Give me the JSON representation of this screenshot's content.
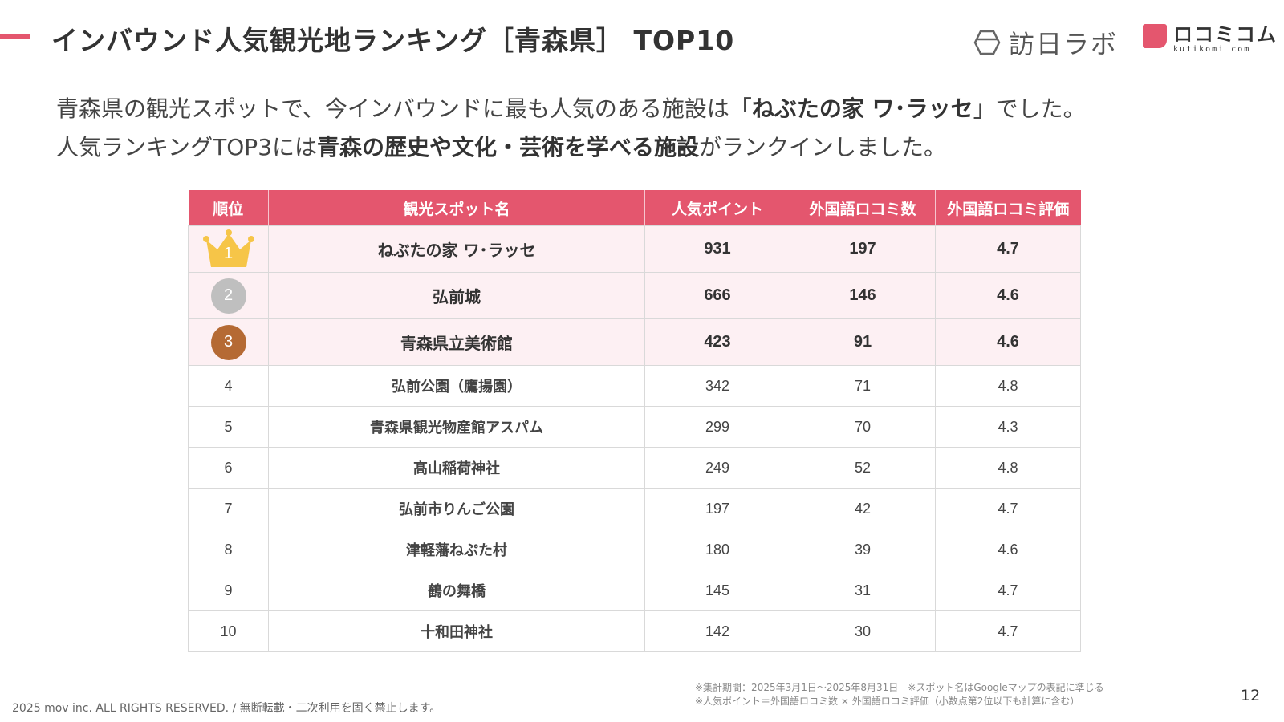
{
  "header": {
    "title": "インバウンド人気観光地ランキング［青森県］ TOP10",
    "logo_labo_name": "訪日ラボ",
    "logo_kuchikomi_jp": "ロコミコム",
    "logo_kuchikomi_en": "kutikomi com",
    "accent_color": "#e4566e"
  },
  "lead": {
    "line1_pre": "青森県の観光スポットで、今インバウンドに最も人気のある施設は「",
    "line1_bold": "ねぶたの家 ワ･ラッセ",
    "line1_post": "」でした。",
    "line2_pre": "人気ランキングTOP3には",
    "line2_bold": "青森の歴史や文化・芸術を学べる施設",
    "line2_post": "がランクインしました。"
  },
  "table": {
    "headers": {
      "rank": "順位",
      "spot": "観光スポット名",
      "points": "人気ポイント",
      "reviews": "外国語ロコミ数",
      "rating": "外国語ロコミ評価"
    },
    "rows": [
      {
        "rank": "1",
        "spot": "ねぶたの家 ワ･ラッセ",
        "points": "931",
        "reviews": "197",
        "rating": "4.7"
      },
      {
        "rank": "2",
        "spot": "弘前城",
        "points": "666",
        "reviews": "146",
        "rating": "4.6"
      },
      {
        "rank": "3",
        "spot": "青森県立美術館",
        "points": "423",
        "reviews": "91",
        "rating": "4.6"
      },
      {
        "rank": "4",
        "spot": "弘前公園（鷹揚園）",
        "points": "342",
        "reviews": "71",
        "rating": "4.8"
      },
      {
        "rank": "5",
        "spot": "青森県観光物産館アスパム",
        "points": "299",
        "reviews": "70",
        "rating": "4.3"
      },
      {
        "rank": "6",
        "spot": "髙山稲荷神社",
        "points": "249",
        "reviews": "52",
        "rating": "4.8"
      },
      {
        "rank": "7",
        "spot": "弘前市りんご公園",
        "points": "197",
        "reviews": "42",
        "rating": "4.7"
      },
      {
        "rank": "8",
        "spot": "津軽藩ねぷた村",
        "points": "180",
        "reviews": "39",
        "rating": "4.6"
      },
      {
        "rank": "9",
        "spot": "鶴の舞橋",
        "points": "145",
        "reviews": "31",
        "rating": "4.7"
      },
      {
        "rank": "10",
        "spot": "十和田神社",
        "points": "142",
        "reviews": "30",
        "rating": "4.7"
      }
    ]
  },
  "notes": {
    "line1": "※集計期間：2025年3月1日〜2025年8月31日　※スポット名はGoogleマップの表記に準じる",
    "line2": "※人気ポイント＝外国語ロコミ数 × 外国語ロコミ評価（小数点第2位以下も計算に含む）"
  },
  "footer": {
    "copyright": "2025 mov inc. ALL RIGHTS RESERVED. / 無断転載・二次利用を固く禁止します。",
    "page_number": "12"
  }
}
